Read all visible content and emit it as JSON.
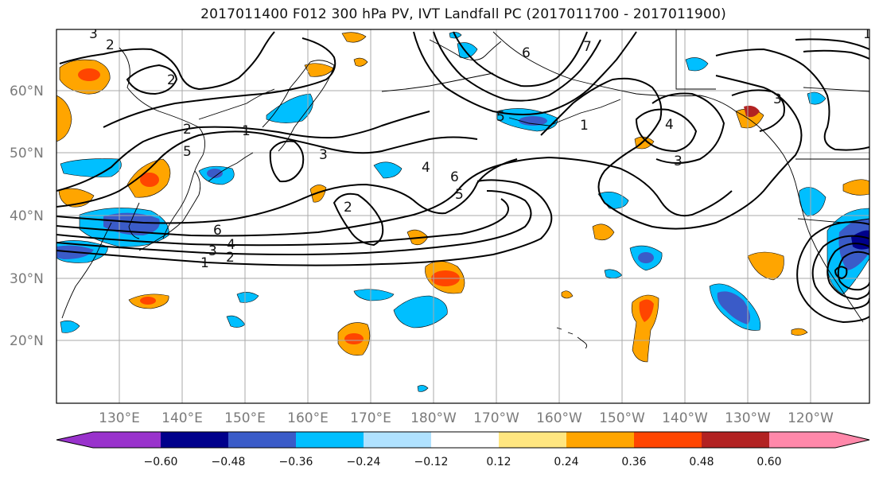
{
  "title": "2017011400 F012 300 hPa PV, IVT Landfall PC (2017011700 - 2017011900)",
  "lat_labels": [
    "60°N",
    "50°N",
    "40°N",
    "30°N",
    "20°N"
  ],
  "lon_labels": [
    "130°E",
    "140°E",
    "150°E",
    "160°E",
    "170°E",
    "180°W",
    "170°W",
    "160°W",
    "150°W",
    "140°W",
    "130°W",
    "120°W"
  ],
  "colorbar": {
    "ticks": [
      "−0.60",
      "−0.48",
      "−0.36",
      "−0.24",
      "−0.12",
      "0.12",
      "0.24",
      "0.36",
      "0.48",
      "0.60"
    ],
    "colors": [
      "#9932cc",
      "#00008b",
      "#3a5bc8",
      "#00bfff",
      "#b0e2ff",
      "#ffffff",
      "#ffe680",
      "#ffa500",
      "#ff4500",
      "#b22222",
      "#ff88aa"
    ]
  },
  "contour_labels": [
    "3",
    "2",
    "2",
    "1",
    "2",
    "3",
    "5",
    "4",
    "6",
    "5",
    "2",
    "6",
    "4",
    "3",
    "2",
    "1",
    "5",
    "6",
    "7",
    "1",
    "4",
    "3",
    "3",
    "1"
  ],
  "colors": {
    "contour": "#000000",
    "grid": "#aaaaaa",
    "coast": "#000000",
    "positive_light": "#ffe680",
    "positive": "#ffa500",
    "positive_strong": "#ff4500",
    "negative_light": "#b0e2ff",
    "negative": "#00bfff",
    "negative_strong": "#3a5bc8",
    "negative_max": "#00008b"
  }
}
